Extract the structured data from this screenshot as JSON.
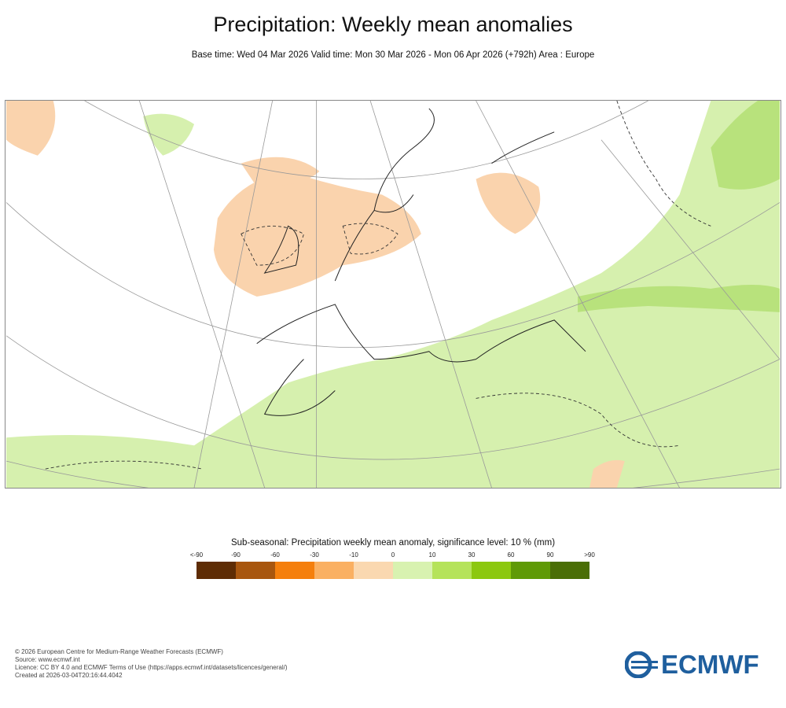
{
  "title": "Precipitation: Weekly mean anomalies",
  "subtitle": "Base time: Wed 04 Mar 2026 Valid time: Mon 30 Mar 2026 - Mon 06 Apr 2026 (+792h) Area : Europe",
  "legend": {
    "title": "Sub-seasonal: Precipitation weekly mean anomaly, significance level: 10 % (mm)",
    "ticks": [
      "<-90",
      "-90",
      "-60",
      "-30",
      "-10",
      "0",
      "10",
      "30",
      "60",
      "90",
      ">90"
    ],
    "colors": [
      "#5e2c04",
      "#a8560e",
      "#f57f0c",
      "#fab062",
      "#fad8b0",
      "#d8f2b0",
      "#b5e35a",
      "#8cc80f",
      "#5f9a06",
      "#4a6e05"
    ]
  },
  "map": {
    "dry_color": "#fad3ad",
    "wet_color": "#d6f0ae",
    "wet_strong_color": "#a9dc6a"
  },
  "footer": [
    "© 2026 European Centre for Medium-Range Weather Forecasts (ECMWF)",
    "Source: www.ecmwf.int",
    "Licence: CC BY 4.0 and ECMWF Terms of Use (https://apps.ecmwf.int/datasets/licences/general/)",
    "Created at 2026-03-04T20:16:44.4042"
  ],
  "logo": "ECMWF"
}
